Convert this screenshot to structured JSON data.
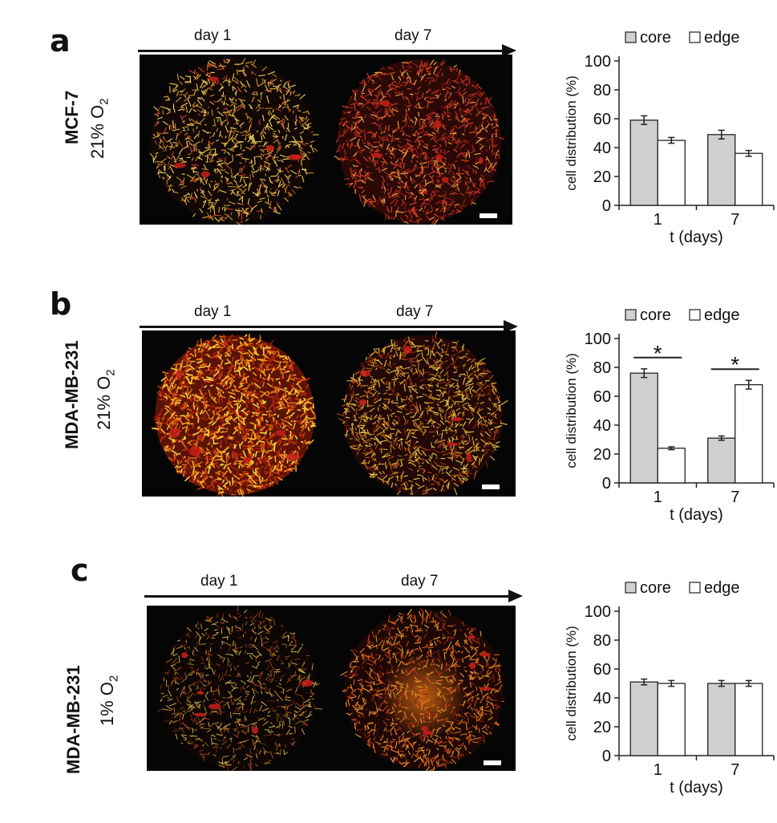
{
  "colors": {
    "core": "#d0d0d0",
    "edge": "#ffffff",
    "axis": "#222222"
  },
  "panels": [
    {
      "letter": "a",
      "cell_line": "MCF-7",
      "oxygen": "21% O",
      "oxygen_sub": "2",
      "day_left": "day 1",
      "day_right": "day 7",
      "images": [
        {
          "name": "MCF-7 21% O2 day 1",
          "palette": "sparse-yellow"
        },
        {
          "name": "MCF-7 21% O2 day 7",
          "palette": "dense-red"
        }
      ]
    },
    {
      "letter": "b",
      "cell_line": "MDA-MB-231",
      "oxygen": "21% O",
      "oxygen_sub": "2",
      "day_left": "day 1",
      "day_right": "day 7",
      "images": [
        {
          "name": "MDA-MB-231 21% O2 day 1",
          "palette": "bright-orange"
        },
        {
          "name": "MDA-MB-231 21% O2 day 7",
          "palette": "ring-yellow"
        }
      ]
    },
    {
      "letter": "c",
      "cell_line": "MDA-MB-231",
      "oxygen": "1% O",
      "oxygen_sub": "2",
      "day_left": "day 1",
      "day_right": "day 7",
      "images": [
        {
          "name": "MDA-MB-231 1% O2 day 1",
          "palette": "sparse-dim"
        },
        {
          "name": "MDA-MB-231 1% O2 day 7",
          "palette": "center-orange"
        }
      ]
    }
  ],
  "chart_data": [
    {
      "type": "bar",
      "categories": [
        "1",
        "7"
      ],
      "series": [
        {
          "name": "core",
          "values": [
            59,
            49
          ],
          "errors": [
            3,
            3
          ]
        },
        {
          "name": "edge",
          "values": [
            45,
            36
          ],
          "errors": [
            2,
            2
          ]
        }
      ],
      "xlabel": "t (days)",
      "ylabel": "cell distribution (%)",
      "ylim": [
        0,
        100
      ],
      "yticks": [
        0,
        20,
        40,
        60,
        80,
        100
      ],
      "legend": "top",
      "significance": []
    },
    {
      "type": "bar",
      "categories": [
        "1",
        "7"
      ],
      "series": [
        {
          "name": "core",
          "values": [
            76,
            31
          ],
          "errors": [
            3,
            1.5
          ]
        },
        {
          "name": "edge",
          "values": [
            24,
            68
          ],
          "errors": [
            1,
            3
          ]
        }
      ],
      "xlabel": "t (days)",
      "ylabel": "cell distribution (%)",
      "ylim": [
        0,
        100
      ],
      "yticks": [
        0,
        20,
        40,
        60,
        80,
        100
      ],
      "legend": "top",
      "significance": [
        "*",
        "*"
      ]
    },
    {
      "type": "bar",
      "categories": [
        "1",
        "7"
      ],
      "series": [
        {
          "name": "core",
          "values": [
            51,
            50
          ],
          "errors": [
            2,
            2
          ]
        },
        {
          "name": "edge",
          "values": [
            50,
            50
          ],
          "errors": [
            2,
            2
          ]
        }
      ],
      "xlabel": "t (days)",
      "ylabel": "cell distribution (%)",
      "ylim": [
        0,
        100
      ],
      "yticks": [
        0,
        20,
        40,
        60,
        80,
        100
      ],
      "legend": "top",
      "significance": []
    }
  ]
}
